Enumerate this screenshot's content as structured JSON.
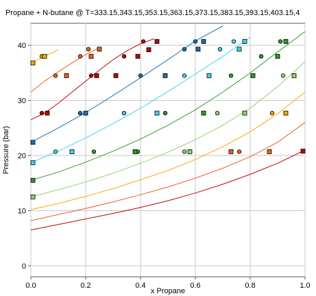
{
  "chart_data": {
    "type": "line",
    "title": "Propane + N-butane @ T=333.15,343.15,353.15,363.15,373.15,383.15,393.15,403.15,4",
    "xlabel": "x Propane",
    "ylabel": "Pressure (bar)",
    "xlim": [
      0,
      1
    ],
    "ylim": [
      -2,
      44
    ],
    "xticks": [
      "0.0",
      "0.2",
      "0.4",
      "0.6",
      "0.8",
      "1.0"
    ],
    "yticks": [
      "0",
      "10",
      "20",
      "30",
      "40"
    ],
    "grid": true,
    "legend": "none",
    "series": [
      {
        "color": "#c00000",
        "curves": [
          {
            "x": [
              0,
              0.1,
              0.2,
              0.3,
              0.4,
              0.5,
              0.6,
              0.7,
              0.8,
              0.9,
              1.0
            ],
            "y": [
              6.5,
              7.5,
              8.5,
              9.5,
              10.6,
              11.8,
              13.2,
              14.8,
              16.6,
              18.6,
              21.0
            ]
          },
          {
            "x": [
              0,
              0.05,
              0.1,
              0.15,
              0.2,
              0.25,
              0.3,
              0.35,
              0.4,
              0.45
            ],
            "y": [
              26.5,
              27.7,
              29.5,
              31.5,
              33.5,
              35.5,
              37.4,
              39.0,
              40.3,
              41.2
            ]
          }
        ],
        "bubble": {
          "x": [
            0.04,
            0.22,
            0.34,
            0.41
          ],
          "y": [
            27.7,
            34.5,
            38.0,
            40.7
          ]
        },
        "dew": {
          "x": [
            0.06,
            0.24,
            0.31,
            0.39,
            0.43,
            0.46,
            1.0
          ],
          "y": [
            27.7,
            34.5,
            34.5,
            38.0,
            39.2,
            40.7,
            20.8
          ]
        }
      },
      {
        "color": "#e86020",
        "curves": [
          {
            "x": [
              0,
              0.1,
              0.2,
              0.3,
              0.4,
              0.5,
              0.6,
              0.7,
              0.8,
              0.9,
              1.0
            ],
            "y": [
              8.2,
              9.3,
              10.4,
              11.6,
              12.9,
              14.3,
              15.9,
              17.7,
              19.8,
              22.4,
              26.0
            ]
          },
          {
            "x": [
              0,
              0.05,
              0.1,
              0.15,
              0.2,
              0.25
            ],
            "y": [
              31.5,
              33.5,
              35.2,
              36.8,
              38.3,
              39.6
            ]
          }
        ],
        "bubble": {
          "x": [
            0.09,
            0.18,
            0.21,
            0.76
          ],
          "y": [
            34.5,
            38.0,
            39.3,
            20.7
          ]
        },
        "dew": {
          "x": [
            0.13,
            0.22,
            0.25,
            0.73,
            0.87
          ],
          "y": [
            34.5,
            38.0,
            39.3,
            20.7,
            20.7
          ]
        }
      },
      {
        "color": "#ffa500",
        "curves": [
          {
            "x": [
              0,
              0.1,
              0.2,
              0.3,
              0.4,
              0.5,
              0.6,
              0.7,
              0.8,
              0.9,
              1.0
            ],
            "y": [
              10.2,
              11.3,
              12.6,
              14.0,
              15.6,
              17.3,
              19.3,
              21.6,
              24.3,
              27.6,
              31.5
            ]
          },
          {
            "x": [
              0,
              0.05,
              0.1
            ],
            "y": [
              36.8,
              38.0,
              39.2
            ]
          }
        ],
        "bubble": {
          "x": [
            0.04,
            0.88
          ],
          "y": [
            38.0,
            27.7
          ]
        },
        "dew": {
          "x": [
            0,
            0.05,
            0.93
          ],
          "y": [
            36.8,
            38.0,
            27.7
          ]
        }
      },
      {
        "color": "#90d070",
        "curves": [
          {
            "x": [
              0,
              0.1,
              0.2,
              0.3,
              0.4,
              0.5,
              0.6,
              0.7,
              0.8,
              0.9,
              1.0
            ],
            "y": [
              12.5,
              13.8,
              15.2,
              16.8,
              18.6,
              20.6,
              22.9,
              25.5,
              28.6,
              32.5,
              37.0
            ]
          }
        ],
        "bubble": {
          "x": [
            0.56,
            0.68,
            0.92
          ],
          "y": [
            20.7,
            27.7,
            34.5
          ]
        },
        "dew": {
          "x": [
            0,
            0.58,
            0.78,
            0.96
          ],
          "y": [
            12.5,
            20.7,
            27.7,
            34.5
          ]
        }
      },
      {
        "color": "#2e9a2e",
        "curves": [
          {
            "x": [
              0,
              0.1,
              0.2,
              0.3,
              0.4,
              0.5,
              0.6,
              0.7,
              0.8,
              0.9,
              1.0
            ],
            "y": [
              15.5,
              17.0,
              18.8,
              20.8,
              23.0,
              25.5,
              28.3,
              31.5,
              35.0,
              38.8,
              42.5
            ]
          }
        ],
        "bubble": {
          "x": [
            0.23,
            0.39,
            0.49,
            0.73,
            0.84,
            0.91
          ],
          "y": [
            20.7,
            20.7,
            27.7,
            34.5,
            38.0,
            40.7
          ]
        },
        "dew": {
          "x": [
            0,
            0.38,
            0.63,
            0.81,
            0.9,
            0.93
          ],
          "y": [
            15.5,
            20.7,
            27.7,
            34.5,
            38.0,
            40.7
          ]
        }
      },
      {
        "color": "#40d0f0",
        "curves": [
          {
            "x": [
              0,
              0.1,
              0.2,
              0.3,
              0.4,
              0.5,
              0.6,
              0.7,
              0.8
            ],
            "y": [
              18.7,
              20.8,
              23.2,
              25.8,
              28.6,
              31.6,
              34.8,
              38.0,
              41.5
            ]
          }
        ],
        "bubble": {
          "x": [
            0.09,
            0.34,
            0.56,
            0.69,
            0.74
          ],
          "y": [
            20.7,
            27.7,
            34.5,
            39.3,
            40.7
          ]
        },
        "dew": {
          "x": [
            0,
            0.15,
            0.46,
            0.65,
            0.76,
            0.78
          ],
          "y": [
            18.7,
            20.7,
            27.7,
            34.5,
            39.3,
            40.7
          ]
        }
      },
      {
        "color": "#1e6eb4",
        "curves": [
          {
            "x": [
              0,
              0.1,
              0.2,
              0.3,
              0.4,
              0.5,
              0.6,
              0.7
            ],
            "y": [
              22.4,
              25.0,
              27.8,
              30.9,
              34.1,
              37.4,
              40.8,
              43.5
            ]
          }
        ],
        "bubble": {
          "x": [
            0.18,
            0.4,
            0.56,
            0.6
          ],
          "y": [
            27.7,
            34.5,
            39.3,
            40.7
          ]
        },
        "dew": {
          "x": [
            0,
            0.2,
            0.49,
            0.61,
            0.63
          ],
          "y": [
            22.4,
            27.7,
            34.5,
            39.3,
            40.7
          ]
        }
      }
    ]
  }
}
